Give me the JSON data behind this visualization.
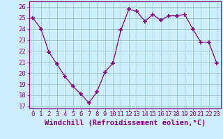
{
  "x": [
    0,
    1,
    2,
    3,
    4,
    5,
    6,
    7,
    8,
    9,
    10,
    11,
    12,
    13,
    14,
    15,
    16,
    17,
    18,
    19,
    20,
    21,
    22,
    23
  ],
  "y": [
    25.0,
    24.0,
    21.9,
    20.8,
    19.7,
    18.8,
    18.1,
    17.3,
    18.3,
    20.1,
    20.9,
    23.9,
    25.8,
    25.6,
    24.7,
    25.3,
    24.8,
    25.2,
    25.2,
    25.3,
    24.0,
    22.8,
    22.8,
    20.9
  ],
  "line_color": "#880088",
  "marker": "+",
  "marker_size": 4,
  "bg_color": "#cceeff",
  "grid_color": "#99cccc",
  "ylabel_ticks": [
    17,
    18,
    19,
    20,
    21,
    22,
    23,
    24,
    25,
    26
  ],
  "xlabel": "Windchill (Refroidissement éolien,°C)",
  "ylim": [
    16.8,
    26.5
  ],
  "xlim": [
    -0.5,
    23.5
  ],
  "tick_fontsize": 6.5,
  "xlabel_fontsize": 7.5,
  "title": ""
}
